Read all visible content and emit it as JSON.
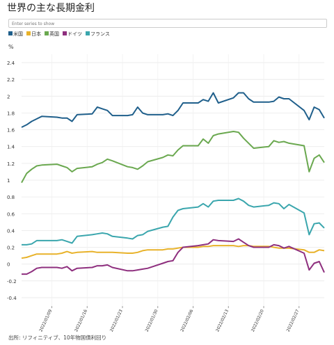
{
  "chart_data": {
    "type": "line",
    "title": "世界の主な長期金利",
    "search_placeholder": "Enter series to show",
    "y_unit": "%",
    "source": "出所: リフィニティブ、10年物国債利回り",
    "x": [
      "2022/01/03",
      "2022/01/04",
      "2022/01/05",
      "2022/01/06",
      "2022/01/07",
      "2022/01/10",
      "2022/01/11",
      "2022/01/12",
      "2022/01/13",
      "2022/01/14",
      "2022/01/17",
      "2022/01/18",
      "2022/01/19",
      "2022/01/20",
      "2022/01/21",
      "2022/01/24",
      "2022/01/25",
      "2022/01/26",
      "2022/01/27",
      "2022/01/28",
      "2022/01/31",
      "2022/02/01",
      "2022/02/02",
      "2022/02/03",
      "2022/02/04",
      "2022/02/07",
      "2022/02/08",
      "2022/02/09",
      "2022/02/10",
      "2022/02/11",
      "2022/02/14",
      "2022/02/15",
      "2022/02/16",
      "2022/02/17",
      "2022/02/18",
      "2022/02/21",
      "2022/02/22",
      "2022/02/23",
      "2022/02/24",
      "2022/02/25",
      "2022/02/28",
      "2022/03/01",
      "2022/03/02",
      "2022/03/03",
      "2022/03/04"
    ],
    "series": [
      {
        "name": "米国",
        "color": "#1f5f8b",
        "values": [
          1.63,
          1.66,
          1.7,
          1.73,
          1.76,
          1.75,
          1.74,
          1.74,
          1.7,
          1.78,
          1.79,
          1.87,
          1.85,
          1.83,
          1.77,
          1.77,
          1.78,
          1.87,
          1.8,
          1.78,
          1.78,
          1.79,
          1.77,
          1.83,
          1.92,
          1.92,
          1.96,
          1.94,
          2.04,
          1.92,
          1.98,
          2.04,
          2.04,
          1.97,
          1.93,
          1.93,
          1.94,
          1.99,
          1.97,
          1.97,
          1.83,
          1.72,
          1.87,
          1.84,
          1.74
        ]
      },
      {
        "name": "日本",
        "color": "#e8b22a",
        "values": [
          0.07,
          0.08,
          0.1,
          0.12,
          0.12,
          0.12,
          0.13,
          0.15,
          0.13,
          0.14,
          0.15,
          0.14,
          0.14,
          0.14,
          0.14,
          0.13,
          0.13,
          0.14,
          0.16,
          0.17,
          0.17,
          0.18,
          0.18,
          0.19,
          0.2,
          0.2,
          0.21,
          0.21,
          0.22,
          0.22,
          0.22,
          0.21,
          0.22,
          0.22,
          0.21,
          0.21,
          0.2,
          0.19,
          0.19,
          0.19,
          0.17,
          0.14,
          0.14,
          0.17,
          0.16
        ]
      },
      {
        "name": "英国",
        "color": "#6aa84f",
        "values": [
          0.97,
          1.08,
          1.13,
          1.17,
          1.18,
          1.19,
          1.17,
          1.15,
          1.1,
          1.14,
          1.16,
          1.19,
          1.21,
          1.25,
          1.23,
          1.16,
          1.15,
          1.13,
          1.17,
          1.22,
          1.27,
          1.3,
          1.29,
          1.36,
          1.41,
          1.41,
          1.49,
          1.44,
          1.53,
          1.55,
          1.58,
          1.57,
          1.5,
          1.44,
          1.38,
          1.4,
          1.47,
          1.45,
          1.46,
          1.44,
          1.41,
          1.1,
          1.26,
          1.3,
          1.21
        ]
      },
      {
        "name": "ドイツ",
        "color": "#8e2f7e",
        "values": [
          -0.12,
          -0.12,
          -0.09,
          -0.05,
          -0.04,
          -0.04,
          -0.05,
          -0.03,
          -0.08,
          -0.05,
          -0.04,
          -0.02,
          -0.02,
          -0.01,
          -0.04,
          -0.08,
          -0.08,
          -0.07,
          -0.06,
          -0.05,
          0.01,
          0.03,
          0.04,
          0.14,
          0.2,
          0.22,
          0.23,
          0.24,
          0.29,
          0.28,
          0.27,
          0.3,
          0.26,
          0.22,
          0.2,
          0.2,
          0.23,
          0.22,
          0.19,
          0.21,
          0.13,
          -0.07,
          0.01,
          0.03,
          -0.1
        ]
      },
      {
        "name": "フランス",
        "color": "#3aa6ad",
        "values": [
          0.23,
          0.23,
          0.24,
          0.28,
          0.28,
          0.28,
          0.29,
          0.27,
          0.25,
          0.33,
          0.35,
          0.36,
          0.37,
          0.36,
          0.33,
          0.31,
          0.3,
          0.34,
          0.35,
          0.39,
          0.44,
          0.45,
          0.56,
          0.64,
          0.66,
          0.68,
          0.72,
          0.68,
          0.75,
          0.76,
          0.76,
          0.78,
          0.75,
          0.7,
          0.68,
          0.7,
          0.73,
          0.72,
          0.66,
          0.71,
          0.61,
          0.35,
          0.48,
          0.49,
          0.43
        ]
      }
    ],
    "xlim": [
      "2022/01/03",
      "2022/03/04"
    ],
    "xticks": [
      "2022/01/09",
      "2022/01/16",
      "2022/01/23",
      "2022/01/30",
      "2022/02/06",
      "2022/02/13",
      "2022/02/20",
      "2022/02/27"
    ],
    "ylim": [
      -0.5,
      2.5
    ],
    "yticks": [
      -0.4,
      -0.2,
      0,
      0.2,
      0.4,
      0.6,
      0.8,
      1,
      1.2,
      1.4,
      1.6,
      1.8,
      2,
      2.2,
      2.4
    ],
    "grid": true
  }
}
